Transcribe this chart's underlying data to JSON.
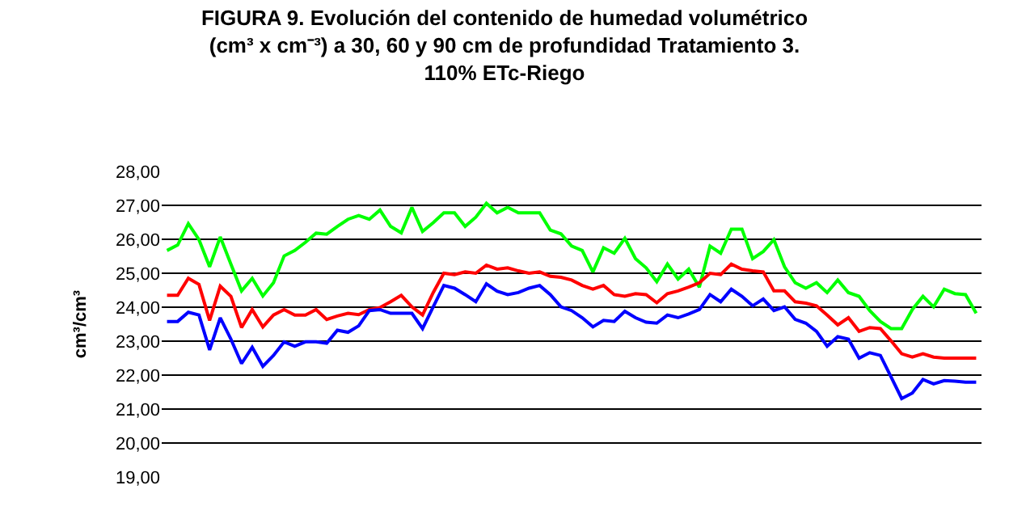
{
  "chart_data": {
    "type": "line",
    "title": "FIGURA 9. Evolución del contenido de humedad volumétrico\n(cm³ x cm⁻³) a 30, 60 y 90 cm de profundidad Tratamiento 3.\n110% ETc-Riego",
    "ylabel": "cm³/cm³",
    "categories": [
      null,
      null,
      null,
      null,
      null,
      null,
      null,
      null,
      null,
      null,
      null,
      null,
      null,
      null,
      null,
      null,
      null,
      null,
      null,
      null,
      null,
      null,
      null,
      null,
      null,
      null,
      null,
      null,
      null,
      null,
      null,
      null,
      null,
      null,
      null,
      null,
      null,
      null,
      null,
      null,
      null,
      null,
      null,
      null,
      null,
      null,
      null,
      null,
      null,
      null,
      null,
      null,
      null,
      null,
      null,
      null,
      null,
      null,
      null,
      null,
      null,
      null,
      null,
      null,
      null,
      null,
      null,
      null,
      null,
      null,
      null,
      null,
      null,
      null,
      null,
      null,
      null
    ],
    "series": [
      {
        "color": "#00ff00",
        "values": [
          25.67,
          25.83,
          26.46,
          25.99,
          25.19,
          26.07,
          25.27,
          24.48,
          24.85,
          24.33,
          24.72,
          25.51,
          25.67,
          25.91,
          26.18,
          26.15,
          26.38,
          26.59,
          26.7,
          26.59,
          26.86,
          26.38,
          26.19,
          26.94,
          26.23,
          26.49,
          26.78,
          26.78,
          26.38,
          26.65,
          27.06,
          26.78,
          26.94,
          26.78,
          26.78,
          26.78,
          26.27,
          26.16,
          25.8,
          25.67,
          25.04,
          25.75,
          25.59,
          26.03,
          25.43,
          25.16,
          24.75,
          25.27,
          24.83,
          25.12,
          24.59,
          25.8,
          25.59,
          26.3,
          26.3,
          25.43,
          25.64,
          25.99,
          25.19,
          24.72,
          24.56,
          24.72,
          24.43,
          24.8,
          24.43,
          24.32,
          23.9,
          23.58,
          23.37,
          23.37,
          23.93,
          24.32,
          24.01,
          24.53,
          24.4,
          24.37,
          23.82
        ]
      },
      {
        "color": "#ff0000",
        "values": [
          24.35,
          24.35,
          24.85,
          24.67,
          23.61,
          24.62,
          24.32,
          23.4,
          23.93,
          23.42,
          23.77,
          23.93,
          23.77,
          23.77,
          23.93,
          23.64,
          23.74,
          23.82,
          23.78,
          23.93,
          23.99,
          24.16,
          24.35,
          24.01,
          23.77,
          24.43,
          25.0,
          24.96,
          25.04,
          25.0,
          25.24,
          25.12,
          25.16,
          25.07,
          25.0,
          25.04,
          24.91,
          24.88,
          24.8,
          24.64,
          24.53,
          24.64,
          24.37,
          24.32,
          24.4,
          24.37,
          24.13,
          24.4,
          24.48,
          24.59,
          24.72,
          25.0,
          24.96,
          25.27,
          25.12,
          25.07,
          25.04,
          24.48,
          24.48,
          24.16,
          24.12,
          24.04,
          23.77,
          23.48,
          23.69,
          23.29,
          23.4,
          23.37,
          23.01,
          22.63,
          22.53,
          22.63,
          22.53,
          22.5,
          22.5,
          22.5,
          22.5
        ]
      },
      {
        "color": "#0000ff",
        "values": [
          23.58,
          23.58,
          23.85,
          23.77,
          22.74,
          23.69,
          23.06,
          22.34,
          22.82,
          22.26,
          22.58,
          22.98,
          22.85,
          22.98,
          22.98,
          22.94,
          23.32,
          23.26,
          23.45,
          23.9,
          23.93,
          23.82,
          23.82,
          23.82,
          23.37,
          24.01,
          24.64,
          24.56,
          24.37,
          24.16,
          24.69,
          24.47,
          24.37,
          24.43,
          24.56,
          24.64,
          24.37,
          24.01,
          23.9,
          23.69,
          23.42,
          23.61,
          23.58,
          23.88,
          23.69,
          23.56,
          23.53,
          23.77,
          23.69,
          23.8,
          23.93,
          24.37,
          24.16,
          24.53,
          24.32,
          24.04,
          24.24,
          23.9,
          24.01,
          23.64,
          23.53,
          23.29,
          22.85,
          23.13,
          23.06,
          22.5,
          22.66,
          22.58,
          21.95,
          21.31,
          21.47,
          21.87,
          21.74,
          21.84,
          21.82,
          21.79,
          21.79
        ]
      }
    ],
    "ylim": [
      19,
      28
    ],
    "yticks": [
      {
        "value": 19,
        "label": "19,00"
      },
      {
        "value": 20,
        "label": "20,00"
      },
      {
        "value": 21,
        "label": "21,00"
      },
      {
        "value": 22,
        "label": "22,00"
      },
      {
        "value": 23,
        "label": "23,00"
      },
      {
        "value": 24,
        "label": "24,00"
      },
      {
        "value": 25,
        "label": "25,00"
      },
      {
        "value": 26,
        "label": "26,00"
      },
      {
        "value": 27,
        "label": "27,00"
      },
      {
        "value": 28,
        "label": "28,00"
      }
    ],
    "grid": "y",
    "tick_labels": "y",
    "marker": "none",
    "line_style": "solid"
  }
}
